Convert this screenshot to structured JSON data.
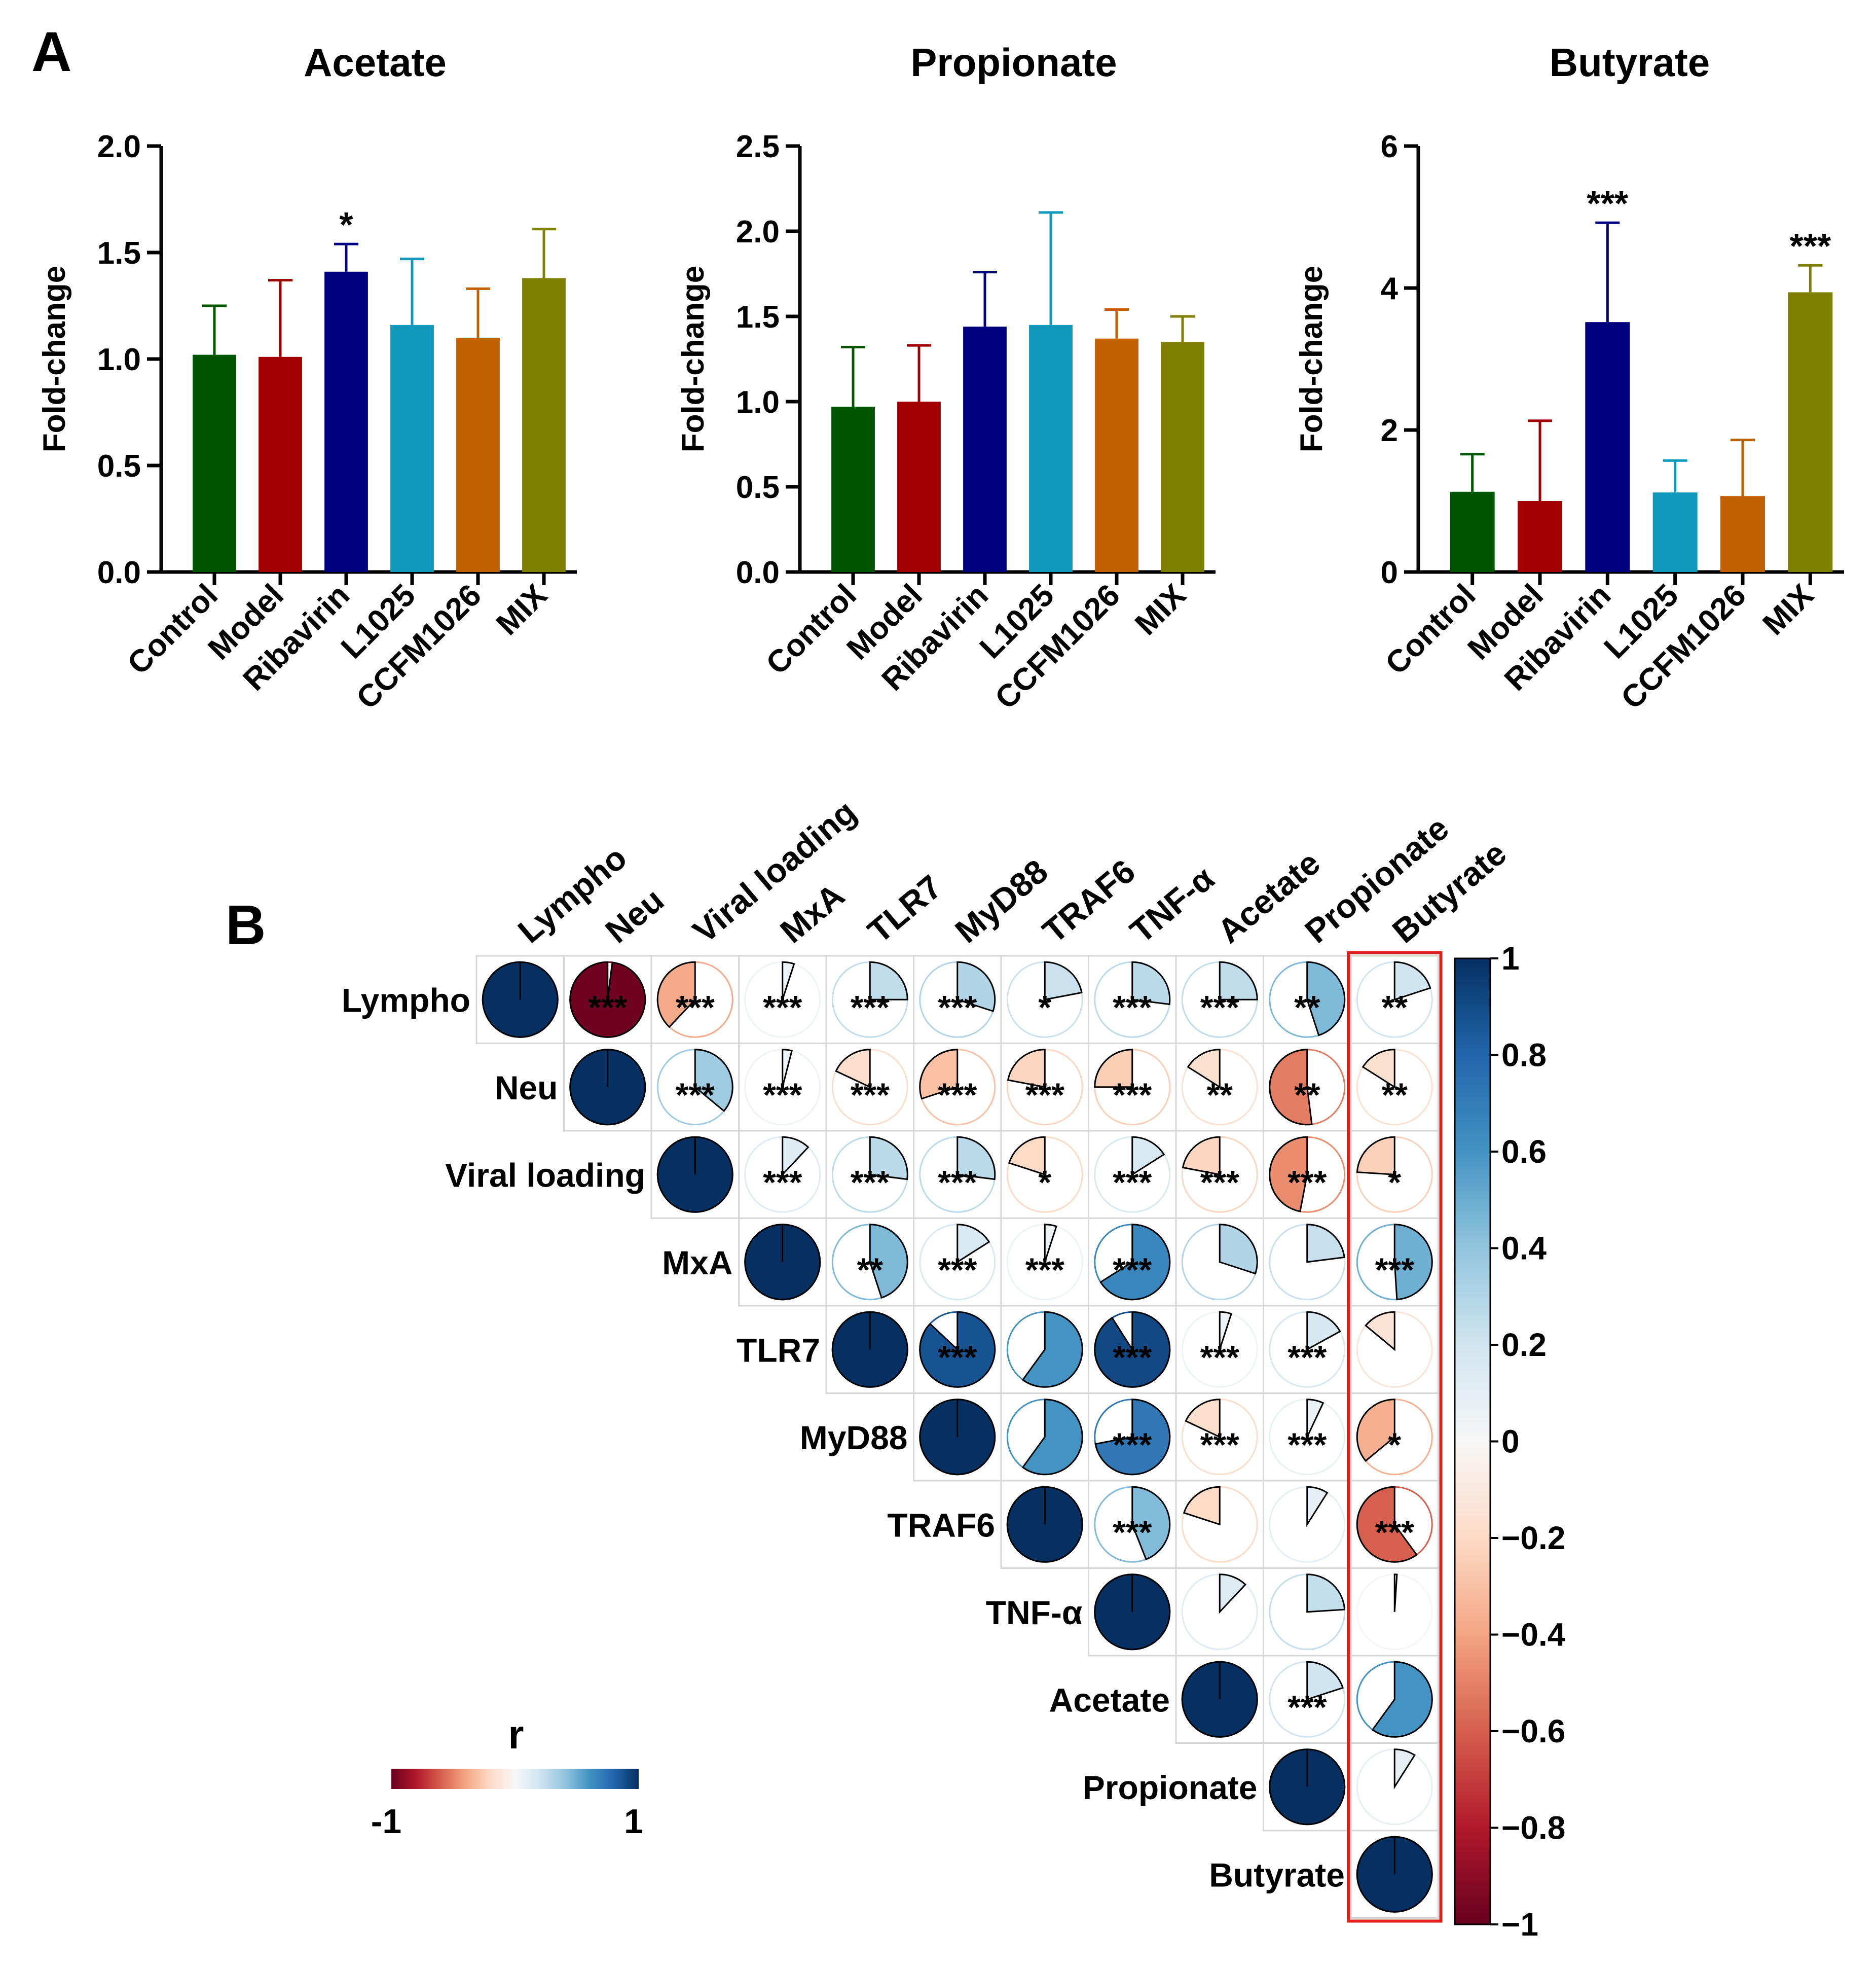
{
  "panel_a_label": "A",
  "panel_b_label": "B",
  "chart_data": [
    {
      "type": "bar",
      "title": "Acetate",
      "xlabel": "",
      "ylabel": "Fold-change",
      "categories": [
        "Control",
        "Model",
        "Ribavirin",
        "L1025",
        "CCFM1026",
        "MIX"
      ],
      "values": [
        1.02,
        1.01,
        1.41,
        1.16,
        1.1,
        1.38
      ],
      "errors": [
        0.23,
        0.36,
        0.13,
        0.31,
        0.23,
        0.23
      ],
      "significance": [
        "",
        "",
        "*",
        "",
        "",
        ""
      ],
      "ylim": [
        0,
        2.0
      ],
      "yticks": [
        "0.0",
        "0.5",
        "1.0",
        "1.5",
        "2.0"
      ],
      "colors": [
        "#005500",
        "#a00000",
        "#000080",
        "#1199bb",
        "#c06000",
        "#808000"
      ]
    },
    {
      "type": "bar",
      "title": "Propionate",
      "xlabel": "",
      "ylabel": "Fold-change",
      "categories": [
        "Control",
        "Model",
        "Ribavirin",
        "L1025",
        "CCFM1026",
        "MIX"
      ],
      "values": [
        0.97,
        1.0,
        1.44,
        1.45,
        1.37,
        1.35
      ],
      "errors": [
        0.35,
        0.33,
        0.32,
        0.66,
        0.17,
        0.15
      ],
      "significance": [
        "",
        "",
        "",
        "",
        "",
        ""
      ],
      "ylim": [
        0,
        2.5
      ],
      "yticks": [
        "0.0",
        "0.5",
        "1.0",
        "1.5",
        "2.0",
        "2.5"
      ],
      "colors": [
        "#005500",
        "#a00000",
        "#000080",
        "#1199bb",
        "#c06000",
        "#808000"
      ]
    },
    {
      "type": "bar",
      "title": "Butyrate",
      "xlabel": "",
      "ylabel": "Fold-change",
      "categories": [
        "Control",
        "Model",
        "Ribavirin",
        "L1025",
        "CCFM1026",
        "MIX"
      ],
      "values": [
        1.13,
        1.0,
        3.52,
        1.12,
        1.07,
        3.94
      ],
      "errors": [
        0.53,
        1.13,
        1.4,
        0.45,
        0.79,
        0.38
      ],
      "significance": [
        "",
        "",
        "***",
        "",
        "",
        "***"
      ],
      "ylim": [
        0,
        6
      ],
      "yticks": [
        "0",
        "2",
        "4",
        "6"
      ],
      "colors": [
        "#005500",
        "#a00000",
        "#000080",
        "#1199bb",
        "#c06000",
        "#808000"
      ]
    },
    {
      "type": "heatmap",
      "title": "",
      "variables": [
        "Lympho",
        "Neu",
        "Viral loading",
        "MxA",
        "TLR7",
        "MyD88",
        "TRAF6",
        "TNF-α",
        "Acetate",
        "Propionate",
        "Butyrate"
      ],
      "r": [
        [
          1.0,
          -0.98,
          -0.38,
          0.05,
          0.25,
          0.3,
          0.22,
          0.27,
          0.25,
          0.45,
          0.2
        ],
        [
          null,
          1.0,
          0.36,
          0.04,
          -0.18,
          -0.3,
          -0.22,
          -0.25,
          -0.16,
          -0.52,
          -0.16
        ],
        [
          null,
          null,
          1.0,
          0.12,
          0.27,
          0.27,
          -0.2,
          0.16,
          -0.22,
          -0.47,
          -0.24
        ],
        [
          null,
          null,
          null,
          1.0,
          0.45,
          0.16,
          0.05,
          0.66,
          0.3,
          0.23,
          0.49
        ],
        [
          null,
          null,
          null,
          null,
          1.0,
          0.87,
          0.6,
          0.91,
          0.05,
          0.17,
          -0.14
        ],
        [
          null,
          null,
          null,
          null,
          null,
          1.0,
          0.6,
          0.72,
          -0.18,
          0.07,
          -0.36
        ],
        [
          null,
          null,
          null,
          null,
          null,
          null,
          1.0,
          0.44,
          -0.2,
          0.09,
          -0.6
        ],
        [
          null,
          null,
          null,
          null,
          null,
          null,
          null,
          1.0,
          0.12,
          0.24,
          0.01
        ],
        [
          null,
          null,
          null,
          null,
          null,
          null,
          null,
          null,
          1.0,
          0.2,
          0.6
        ],
        [
          null,
          null,
          null,
          null,
          null,
          null,
          null,
          null,
          null,
          1.0,
          0.09
        ],
        [
          null,
          null,
          null,
          null,
          null,
          null,
          null,
          null,
          null,
          null,
          1.0
        ]
      ],
      "significance": [
        [
          "",
          "***",
          "***",
          "***",
          "***",
          "***",
          "*",
          "***",
          "***",
          "**",
          "**"
        ],
        [
          "",
          "",
          "***",
          "***",
          "***",
          "***",
          "***",
          "***",
          "**",
          "**",
          "**"
        ],
        [
          "",
          "",
          "",
          "***",
          "***",
          "***",
          "*",
          "***",
          "***",
          "***",
          "*"
        ],
        [
          "",
          "",
          "",
          "",
          "**",
          "***",
          "***",
          "***",
          "",
          "",
          "***"
        ],
        [
          "",
          "",
          "",
          "",
          "",
          "***",
          "",
          "***",
          "***",
          "***",
          ""
        ],
        [
          "",
          "",
          "",
          "",
          "",
          "",
          "",
          "***",
          "***",
          "***",
          "*"
        ],
        [
          "",
          "",
          "",
          "",
          "",
          "",
          "",
          "***",
          "",
          "",
          "***"
        ],
        [
          "",
          "",
          "",
          "",
          "",
          "",
          "",
          "",
          "",
          "",
          ""
        ],
        [
          "",
          "",
          "",
          "",
          "",
          "",
          "",
          "",
          "",
          "***",
          ""
        ],
        [
          "",
          "",
          "",
          "",
          "",
          "",
          "",
          "",
          "",
          "",
          ""
        ],
        [
          "",
          "",
          "",
          "",
          "",
          "",
          "",
          "",
          "",
          "",
          ""
        ]
      ],
      "highlighted_column": "Butyrate",
      "colorbar": {
        "range": [
          -1,
          1
        ],
        "ticks": [
          1,
          0.8,
          0.6,
          0.4,
          0.2,
          0,
          -0.2,
          -0.4,
          -0.6,
          -0.8,
          -1
        ],
        "tick_labels": [
          "1",
          "0.8",
          "0.6",
          "0.4",
          "0.2",
          "0",
          "−0.2",
          "−0.4",
          "−0.6",
          "−0.8",
          "−1"
        ]
      },
      "legend": {
        "title": "r",
        "min_label": "-1",
        "max_label": "1"
      }
    }
  ]
}
